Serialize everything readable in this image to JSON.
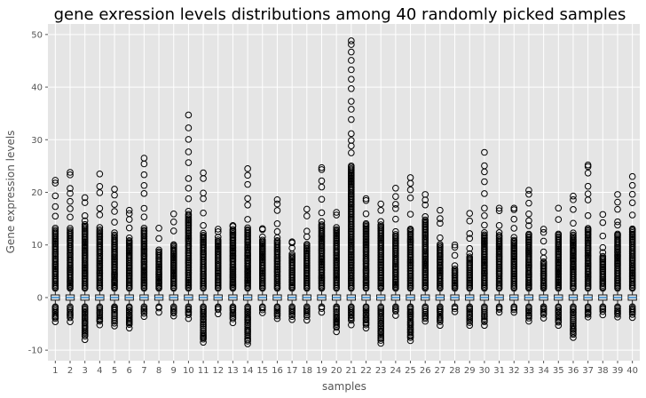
{
  "chart_data": {
    "type": "boxplot",
    "title": "gene exression levels distributions among 40 randomly picked samples",
    "xlabel": "samples",
    "ylabel": "Gene expression levels",
    "ylim": [
      -12,
      52
    ],
    "yticks": [
      -10,
      0,
      10,
      20,
      30,
      40,
      50
    ],
    "grid": true,
    "colors": {
      "background": "#e5e5e5",
      "grid": "#ffffff",
      "box": "#1a1a1a",
      "median": "#1a7fd0",
      "outlier": "#000000"
    },
    "categories": [
      "1",
      "2",
      "3",
      "4",
      "5",
      "6",
      "7",
      "8",
      "9",
      "10",
      "11",
      "12",
      "13",
      "14",
      "15",
      "16",
      "17",
      "18",
      "19",
      "20",
      "21",
      "22",
      "23",
      "24",
      "25",
      "26",
      "27",
      "28",
      "29",
      "30",
      "31",
      "32",
      "33",
      "34",
      "35",
      "36",
      "37",
      "38",
      "39",
      "40"
    ],
    "max_outlier": [
      22.3,
      23.8,
      19.0,
      23.5,
      20.6,
      16.6,
      26.5,
      13.2,
      15.9,
      34.7,
      23.7,
      13.0,
      13.7,
      24.5,
      13.1,
      18.6,
      10.6,
      16.8,
      24.7,
      16.2,
      48.8,
      18.8,
      17.8,
      20.8,
      22.8,
      19.6,
      16.6,
      10.0,
      16.0,
      27.6,
      17.0,
      17.0,
      20.4,
      13.0,
      17.0,
      19.3,
      25.2,
      15.8,
      19.6,
      23.0
    ],
    "min_outlier": [
      -4.6,
      -4.6,
      -8.0,
      -5.2,
      -5.4,
      -5.8,
      -3.6,
      -2.8,
      -3.5,
      -4.0,
      -8.5,
      -3.1,
      -4.8,
      -8.8,
      -2.9,
      -4.0,
      -4.2,
      -4.3,
      -2.8,
      -6.5,
      -5.2,
      -5.8,
      -8.7,
      -3.4,
      -8.2,
      -4.5,
      -5.3,
      -2.7,
      -5.3,
      -5.3,
      -2.8,
      -2.8,
      -4.5,
      -3.9,
      -5.3,
      -7.6,
      -3.7,
      -3.3,
      -3.7,
      -3.8
    ],
    "dense_top": [
      13,
      13,
      14,
      13,
      12,
      11,
      13,
      9,
      10,
      16,
      12,
      11,
      13,
      13,
      11,
      11,
      8,
      10,
      14,
      13,
      25,
      14,
      14,
      12,
      13,
      15,
      10,
      5.5,
      8,
      12,
      12,
      11,
      12,
      7,
      12,
      12,
      13,
      8,
      12,
      13
    ],
    "box": {
      "q1": -0.5,
      "median": 0,
      "q3": 0.5,
      "whisker_low": -1.4,
      "whisker_high": 1.4
    }
  }
}
